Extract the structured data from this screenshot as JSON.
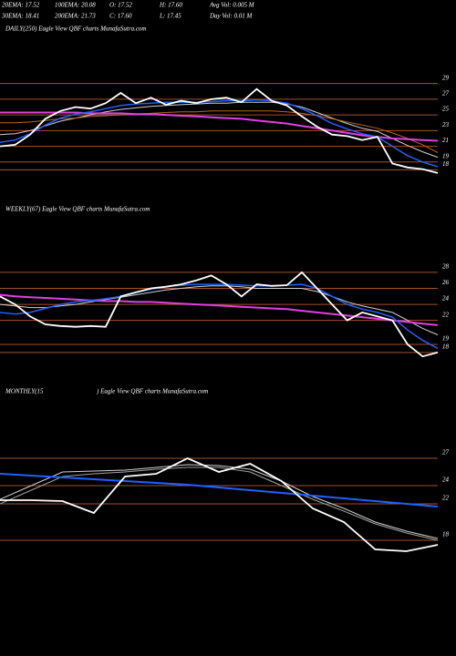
{
  "header": {
    "row1": [
      "20EMA: 17.52",
      "100EMA: 20.08",
      "O: 17.52",
      "H: 17.60",
      "Avg Vol: 0.005 M"
    ],
    "row2": [
      "30EMA: 18.41",
      "200EMA: 21.73",
      "C: 17.60",
      "L: 17.45",
      "Day Vol: 0.01 M"
    ]
  },
  "chart_data": [
    {
      "type": "line",
      "title": "DAILY(250) Eagle  View  QBF charts MunafaSutra.com",
      "ylim": [
        14.1,
        35
      ],
      "yticks": [
        29,
        27,
        25,
        23,
        21,
        19,
        18
      ],
      "grid": true,
      "grid_color": "#a0522d",
      "series": [
        {
          "color": "#d0d0d0",
          "width": 1,
          "values": [
            22.5,
            22.6,
            23,
            23.6,
            24.2,
            24.6,
            25,
            25.4,
            25.7,
            25.9,
            26.1,
            26.2,
            26.3,
            26.4,
            26.5,
            26.5,
            26.6,
            26.6,
            26.6,
            26.4,
            26,
            25.3,
            24.6,
            23.9,
            23.3,
            22.9,
            22,
            21.1,
            20.3,
            19.6
          ]
        },
        {
          "color": "#b5651d",
          "width": 1,
          "values": [
            24,
            24,
            24.1,
            24.3,
            24.5,
            24.6,
            24.8,
            24.9,
            25,
            25.1,
            25.2,
            25.3,
            25.4,
            25.4,
            25.5,
            25.5,
            25.5,
            25.5,
            25.5,
            25.4,
            25.2,
            24.9,
            24.5,
            24.1,
            23.7,
            23.3,
            22.7,
            22,
            21.2,
            20.2
          ]
        },
        {
          "color": "#e040e0",
          "width": 2,
          "values": [
            25.3,
            25.3,
            25.3,
            25.3,
            25.3,
            25.3,
            25.2,
            25.2,
            25.2,
            25.1,
            25.1,
            25,
            24.9,
            24.8,
            24.7,
            24.6,
            24.5,
            24.3,
            24.1,
            23.9,
            23.6,
            23.3,
            23,
            22.7,
            22.4,
            22.2,
            22,
            21.9,
            21.8,
            21.7
          ]
        },
        {
          "color": "#2060ff",
          "width": 1.5,
          "values": [
            21.5,
            21.8,
            22.6,
            23.7,
            24.6,
            25.1,
            25.4,
            25.8,
            26.2,
            26.4,
            26.5,
            26.6,
            26.6,
            26.6,
            26.7,
            26.8,
            26.8,
            26.9,
            26.8,
            26.5,
            25.8,
            24.9,
            23.9,
            23.2,
            22.6,
            22.2,
            21,
            19.8,
            19,
            18.4
          ]
        },
        {
          "color": "#ffffff",
          "width": 1.8,
          "values": [
            21,
            21.2,
            22.5,
            24.5,
            25.5,
            26,
            25.8,
            26.5,
            27.8,
            26.5,
            27.2,
            26.3,
            26.8,
            26.5,
            27,
            27.2,
            26.6,
            28.3,
            26.8,
            26.2,
            24.8,
            23.5,
            22.5,
            22.3,
            21.8,
            22.2,
            18.8,
            18.3,
            18.1,
            17.6
          ]
        }
      ]
    },
    {
      "type": "line",
      "title": "WEEKLY(67) Eagle  View  QBF charts MunafaSutra.com",
      "ylim": [
        16.5,
        34.7
      ],
      "yticks": [
        28,
        26,
        24,
        22,
        19,
        18
      ],
      "grid": true,
      "grid_color": "#a0522d",
      "series": [
        {
          "color": "#d0d0d0",
          "width": 1,
          "values": [
            24,
            23.8,
            23.6,
            23.6,
            23.8,
            24,
            24.3,
            24.6,
            24.9,
            25.2,
            25.5,
            25.8,
            26,
            26.2,
            26.3,
            26.3,
            26.2,
            26,
            26,
            26,
            26,
            25.6,
            25,
            24.3,
            23.8,
            23.4,
            23,
            22,
            21,
            20.2
          ]
        },
        {
          "color": "#e040e0",
          "width": 2,
          "values": [
            25.2,
            25,
            24.9,
            24.8,
            24.7,
            24.6,
            24.5,
            24.4,
            24.4,
            24.3,
            24.3,
            24.2,
            24.1,
            24,
            23.9,
            23.8,
            23.7,
            23.6,
            23.5,
            23.4,
            23.2,
            23,
            22.8,
            22.6,
            22.4,
            22.2,
            22,
            21.8,
            21.6,
            21.4
          ]
        },
        {
          "color": "#2060ff",
          "width": 1.5,
          "values": [
            23,
            22.8,
            23,
            23.5,
            24,
            24.3,
            24.5,
            24.7,
            25,
            25.5,
            25.9,
            26.2,
            26.4,
            26.5,
            26.5,
            26.5,
            26.4,
            26.3,
            26.3,
            26.4,
            26.5,
            26,
            25,
            24,
            23.4,
            23,
            22.4,
            20.8,
            19.5,
            18.5
          ]
        },
        {
          "color": "#ffffff",
          "width": 1.8,
          "values": [
            25,
            24,
            22.5,
            21.5,
            21.3,
            21.2,
            21.3,
            21.2,
            25,
            25.5,
            26,
            26.2,
            26.5,
            27,
            27.6,
            26.5,
            25,
            26.5,
            26.3,
            26.4,
            28,
            26,
            24,
            22,
            23,
            22.5,
            22,
            19,
            17.5,
            18
          ]
        }
      ]
    },
    {
      "type": "line",
      "title": "MONTHLY(15",
      "subtitle": ") Eagle  View  QBF charts MunafaSutra.com",
      "ylim": [
        13.3,
        33.3
      ],
      "yticks": [
        27,
        24,
        22,
        18
      ],
      "grid": true,
      "grid_color": "#a0522d",
      "series": [
        {
          "color": "#d0d0d0",
          "width": 1,
          "values": [
            22.5,
            24,
            25.5,
            25.6,
            25.7,
            26,
            26.3,
            26.2,
            25.8,
            24.5,
            22.8,
            21.5,
            20,
            19,
            18.2
          ]
        },
        {
          "color": "#a0a0a0",
          "width": 1,
          "values": [
            22,
            23.5,
            25,
            25.3,
            25.5,
            25.8,
            26,
            26,
            25.5,
            24,
            22.5,
            21.2,
            19.8,
            18.8,
            18
          ]
        },
        {
          "color": "#2060ff",
          "width": 2,
          "values": [
            25.3,
            25.1,
            24.9,
            24.7,
            24.5,
            24.3,
            24.1,
            23.8,
            23.5,
            23.2,
            22.9,
            22.6,
            22.3,
            22,
            21.7
          ]
        },
        {
          "color": "#ffffff",
          "width": 1.8,
          "values": [
            22.4,
            22.4,
            22.3,
            21,
            25,
            25.3,
            27,
            25.5,
            26.4,
            24.5,
            21.5,
            20,
            17,
            16.8,
            17.5
          ]
        }
      ]
    }
  ]
}
